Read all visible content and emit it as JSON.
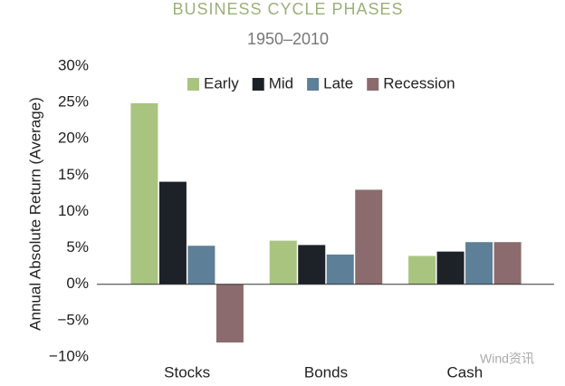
{
  "chart_data": {
    "type": "bar",
    "title": "BUSINESS CYCLE PHASES",
    "subtitle": "1950–2010",
    "y_label": "Annual Absolute Return (Average)",
    "watermark": "Wind资讯",
    "categories": [
      "Stocks",
      "Bonds",
      "Cash"
    ],
    "series": [
      {
        "name": "Early",
        "color": "#a9c47f",
        "values": [
          24.9,
          6.0,
          3.9
        ]
      },
      {
        "name": "Mid",
        "color": "#1c2228",
        "values": [
          14.1,
          5.4,
          4.5
        ]
      },
      {
        "name": "Late",
        "color": "#5d7f98",
        "values": [
          5.3,
          4.1,
          5.8
        ]
      },
      {
        "name": "Recession",
        "color": "#8b6b6e",
        "values": [
          -8.0,
          13.0,
          5.8
        ]
      }
    ],
    "ylim": [
      -10,
      30
    ],
    "yticks": [
      {
        "value": -10,
        "label": "−10%"
      },
      {
        "value": -5,
        "label": "−5%"
      },
      {
        "value": 0,
        "label": "0%"
      },
      {
        "value": 5,
        "label": "5%"
      },
      {
        "value": 10,
        "label": "10%"
      },
      {
        "value": 15,
        "label": "15%"
      },
      {
        "value": 20,
        "label": "20%"
      },
      {
        "value": 25,
        "label": "25%"
      },
      {
        "value": 30,
        "label": "30%"
      }
    ],
    "grid": false,
    "legend": "top"
  }
}
